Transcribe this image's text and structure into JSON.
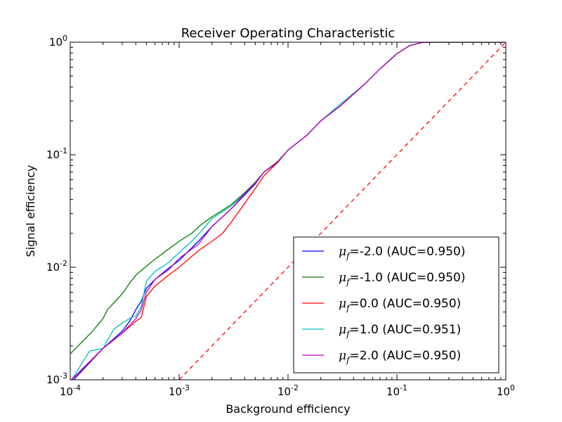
{
  "chart_data": {
    "type": "line",
    "title": "Receiver Operating Characteristic",
    "xlabel": "Background efficiency",
    "ylabel": "Signal efficiency",
    "xscale": "log",
    "yscale": "log",
    "xlim": [
      0.0001,
      1
    ],
    "ylim": [
      0.001,
      1
    ],
    "grid": false,
    "legend_position": "lower-right",
    "x_tick_labels": [
      {
        "value": 0.0001,
        "base": "10",
        "exp": "-4"
      },
      {
        "value": 0.001,
        "base": "10",
        "exp": "-3"
      },
      {
        "value": 0.01,
        "base": "10",
        "exp": "-2"
      },
      {
        "value": 0.1,
        "base": "10",
        "exp": "-1"
      },
      {
        "value": 1,
        "base": "10",
        "exp": "0"
      }
    ],
    "y_tick_labels": [
      {
        "value": 0.001,
        "base": "10",
        "exp": "-3"
      },
      {
        "value": 0.01,
        "base": "10",
        "exp": "-2"
      },
      {
        "value": 0.1,
        "base": "10",
        "exp": "-1"
      },
      {
        "value": 1,
        "base": "10",
        "exp": "0"
      }
    ],
    "series": [
      {
        "legend_symbol": "μ",
        "legend_subscript": "f",
        "legend_text": "=-2.0 (AUC=0.950)",
        "color": "#0000ff",
        "points": [
          [
            0.0001,
            0.00093
          ],
          [
            0.0002,
            0.0019
          ],
          [
            0.0003,
            0.0027
          ],
          [
            0.00035,
            0.0033
          ],
          [
            0.0004,
            0.0042
          ],
          [
            0.00045,
            0.005
          ],
          [
            0.0005,
            0.0065
          ],
          [
            0.0006,
            0.0078
          ],
          [
            0.0008,
            0.0098
          ],
          [
            0.001,
            0.0115
          ],
          [
            0.0015,
            0.017
          ],
          [
            0.002,
            0.023
          ],
          [
            0.003,
            0.033
          ],
          [
            0.004,
            0.044
          ],
          [
            0.005,
            0.055
          ],
          [
            0.006,
            0.07
          ],
          [
            0.008,
            0.085
          ],
          [
            0.01,
            0.11
          ],
          [
            0.015,
            0.15
          ],
          [
            0.02,
            0.2
          ],
          [
            0.03,
            0.27
          ],
          [
            0.05,
            0.42
          ],
          [
            0.07,
            0.58
          ],
          [
            0.1,
            0.79
          ],
          [
            0.13,
            0.93
          ],
          [
            0.17,
            0.995
          ],
          [
            0.2,
            1.0
          ],
          [
            1,
            1.0
          ]
        ]
      },
      {
        "legend_symbol": "μ",
        "legend_subscript": "f",
        "legend_text": "=-1.0 (AUC=0.950)",
        "color": "#007f00",
        "points": [
          [
            0.0001,
            0.0017
          ],
          [
            0.00013,
            0.0022
          ],
          [
            0.00016,
            0.0027
          ],
          [
            0.0002,
            0.0035
          ],
          [
            0.00022,
            0.0042
          ],
          [
            0.00025,
            0.0048
          ],
          [
            0.0003,
            0.0058
          ],
          [
            0.00035,
            0.0072
          ],
          [
            0.0004,
            0.0085
          ],
          [
            0.0005,
            0.0102
          ],
          [
            0.0006,
            0.0118
          ],
          [
            0.0008,
            0.0145
          ],
          [
            0.001,
            0.017
          ],
          [
            0.0013,
            0.02
          ],
          [
            0.0016,
            0.024
          ],
          [
            0.002,
            0.028
          ],
          [
            0.003,
            0.036
          ],
          [
            0.004,
            0.046
          ],
          [
            0.005,
            0.057
          ],
          [
            0.006,
            0.07
          ],
          [
            0.008,
            0.087
          ],
          [
            0.01,
            0.11
          ],
          [
            0.015,
            0.15
          ],
          [
            0.02,
            0.2
          ],
          [
            0.03,
            0.27
          ],
          [
            0.05,
            0.42
          ],
          [
            0.07,
            0.58
          ],
          [
            0.1,
            0.79
          ],
          [
            0.13,
            0.93
          ],
          [
            0.17,
            0.995
          ],
          [
            0.2,
            1.0
          ],
          [
            1,
            1.0
          ]
        ]
      },
      {
        "legend_symbol": "μ",
        "legend_subscript": "f",
        "legend_text": "=0.0 (AUC=0.950)",
        "color": "#ff0000",
        "points": [
          [
            0.0001,
            0.00097
          ],
          [
            0.0002,
            0.0019
          ],
          [
            0.0003,
            0.0026
          ],
          [
            0.0004,
            0.0033
          ],
          [
            0.00045,
            0.0036
          ],
          [
            0.0005,
            0.0055
          ],
          [
            0.0006,
            0.0068
          ],
          [
            0.0008,
            0.0085
          ],
          [
            0.001,
            0.01
          ],
          [
            0.0015,
            0.014
          ],
          [
            0.002,
            0.017
          ],
          [
            0.0025,
            0.02
          ],
          [
            0.003,
            0.025
          ],
          [
            0.004,
            0.037
          ],
          [
            0.005,
            0.05
          ],
          [
            0.006,
            0.065
          ],
          [
            0.008,
            0.085
          ],
          [
            0.01,
            0.11
          ],
          [
            0.015,
            0.15
          ],
          [
            0.02,
            0.2
          ],
          [
            0.03,
            0.27
          ],
          [
            0.05,
            0.42
          ],
          [
            0.07,
            0.58
          ],
          [
            0.1,
            0.79
          ],
          [
            0.13,
            0.93
          ],
          [
            0.17,
            0.995
          ],
          [
            0.2,
            1.0
          ],
          [
            1,
            1.0
          ]
        ]
      },
      {
        "legend_symbol": "μ",
        "legend_subscript": "f",
        "legend_text": "=1.0 (AUC=0.951)",
        "color": "#00bfbf",
        "points": [
          [
            0.0001,
            0.00095
          ],
          [
            0.00015,
            0.0018
          ],
          [
            0.0002,
            0.0019
          ],
          [
            0.00025,
            0.0028
          ],
          [
            0.0003,
            0.0032
          ],
          [
            0.00035,
            0.0035
          ],
          [
            0.0004,
            0.0037
          ],
          [
            0.00045,
            0.0045
          ],
          [
            0.0005,
            0.0075
          ],
          [
            0.0006,
            0.0092
          ],
          [
            0.0008,
            0.011
          ],
          [
            0.001,
            0.0135
          ],
          [
            0.0013,
            0.017
          ],
          [
            0.0016,
            0.021
          ],
          [
            0.002,
            0.027
          ],
          [
            0.003,
            0.035
          ],
          [
            0.004,
            0.045
          ],
          [
            0.005,
            0.056
          ],
          [
            0.006,
            0.07
          ],
          [
            0.008,
            0.086
          ],
          [
            0.01,
            0.11
          ],
          [
            0.015,
            0.15
          ],
          [
            0.02,
            0.2
          ],
          [
            0.03,
            0.28
          ],
          [
            0.05,
            0.42
          ],
          [
            0.07,
            0.58
          ],
          [
            0.1,
            0.79
          ],
          [
            0.13,
            0.93
          ],
          [
            0.17,
            0.995
          ],
          [
            0.2,
            1.0
          ],
          [
            1,
            1.0
          ]
        ]
      },
      {
        "legend_symbol": "μ",
        "legend_subscript": "f",
        "legend_text": "=2.0 (AUC=0.950)",
        "color": "#bf00bf",
        "points": [
          [
            0.0001,
            0.00098
          ],
          [
            0.0002,
            0.0019
          ],
          [
            0.0003,
            0.0026
          ],
          [
            0.0004,
            0.0035
          ],
          [
            0.00045,
            0.0042
          ],
          [
            0.0005,
            0.006
          ],
          [
            0.0006,
            0.0078
          ],
          [
            0.0008,
            0.0095
          ],
          [
            0.001,
            0.012
          ],
          [
            0.0015,
            0.016
          ],
          [
            0.002,
            0.023
          ],
          [
            0.003,
            0.033
          ],
          [
            0.004,
            0.045
          ],
          [
            0.005,
            0.056
          ],
          [
            0.006,
            0.07
          ],
          [
            0.008,
            0.086
          ],
          [
            0.01,
            0.11
          ],
          [
            0.015,
            0.15
          ],
          [
            0.02,
            0.2
          ],
          [
            0.03,
            0.27
          ],
          [
            0.05,
            0.42
          ],
          [
            0.07,
            0.58
          ],
          [
            0.1,
            0.79
          ],
          [
            0.13,
            0.93
          ],
          [
            0.17,
            0.995
          ],
          [
            0.2,
            1.0
          ],
          [
            1,
            1.0
          ]
        ]
      }
    ],
    "reference_line": {
      "style": "dashed",
      "color": "#ff0000",
      "points": [
        [
          0.001,
          0.001
        ],
        [
          1,
          1
        ]
      ]
    }
  }
}
